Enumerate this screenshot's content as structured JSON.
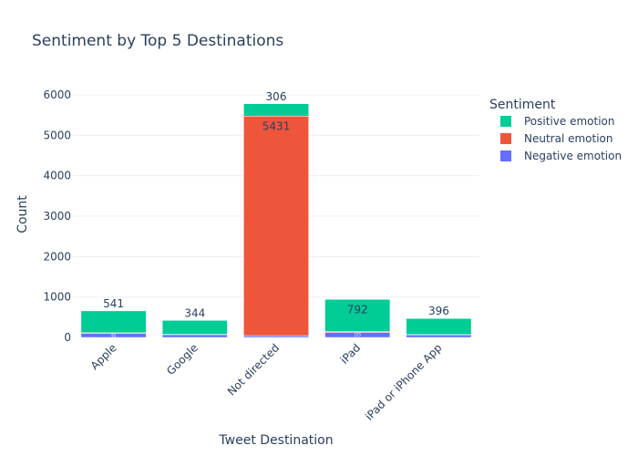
{
  "chart_data": {
    "type": "bar",
    "stacked": true,
    "title": "Sentiment by Top 5 Destinations",
    "xlabel": "Tweet Destination",
    "ylabel": "Count",
    "ylim": [
      0,
      6000
    ],
    "yticks": [
      0,
      1000,
      2000,
      3000,
      4000,
      5000,
      6000
    ],
    "grid": true,
    "legend": {
      "title": "Sentiment",
      "placement": "right"
    },
    "categories": [
      "Apple",
      "Google",
      "Not directed",
      "iPad",
      "iPad or iPhone App"
    ],
    "series": [
      {
        "name": "Negative emotion",
        "color": "#636efa",
        "values": [
          95,
          68,
          43,
          125,
          63
        ],
        "labels": [
          "95",
          "68",
          "43",
          "125",
          "63"
        ]
      },
      {
        "name": "Neutral emotion",
        "color": "#ef553b",
        "values": [
          21,
          9,
          5431,
          24,
          10
        ],
        "labels": [
          "",
          "",
          "5431",
          "",
          ""
        ]
      },
      {
        "name": "Positive emotion",
        "color": "#00cc96",
        "values": [
          541,
          344,
          306,
          792,
          396
        ],
        "labels": [
          "541",
          "344",
          "306",
          "792",
          "396"
        ]
      }
    ]
  }
}
